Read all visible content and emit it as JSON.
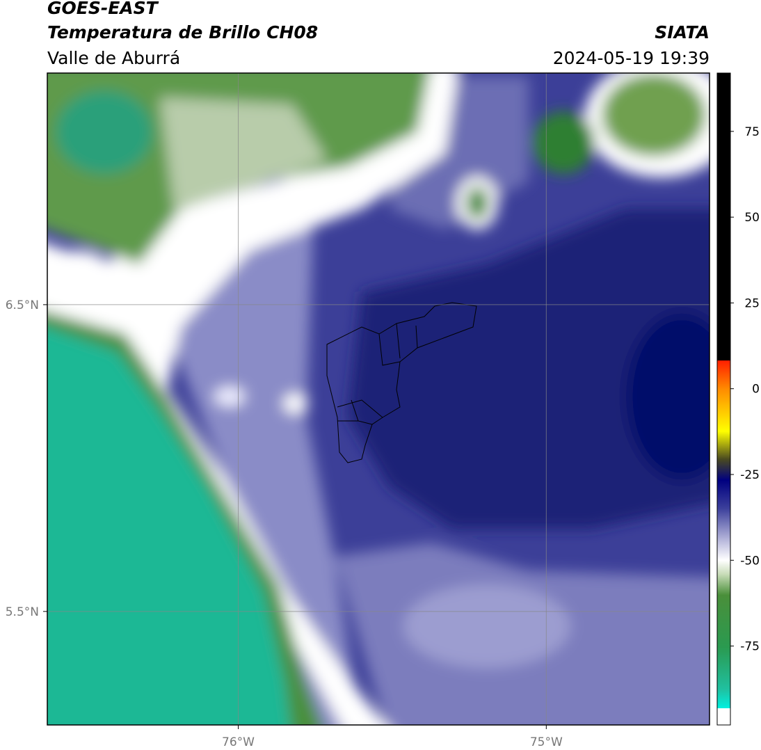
{
  "header": {
    "title": "GOES-EAST",
    "subtitle": "Temperatura de Brillo CH08",
    "region": "Valle de Aburrá",
    "source": "SIATA",
    "datetime": "2024-05-19 19:39"
  },
  "map": {
    "latlim": [
      5.13,
      7.255
    ],
    "lonlim": [
      -76.62,
      -74.47
    ],
    "latticks": [
      {
        "value": 6.5,
        "label": "6.5°N"
      },
      {
        "value": 5.5,
        "label": "5.5°N"
      }
    ],
    "lonticks": [
      {
        "value": -76,
        "label": "76°W"
      },
      {
        "value": -75,
        "label": "75°W"
      }
    ],
    "grid": true
  },
  "colorbar": {
    "lim": [
      -98,
      92
    ],
    "ticks": [
      75,
      50,
      25,
      0,
      -25,
      -50,
      -75
    ]
  }
}
